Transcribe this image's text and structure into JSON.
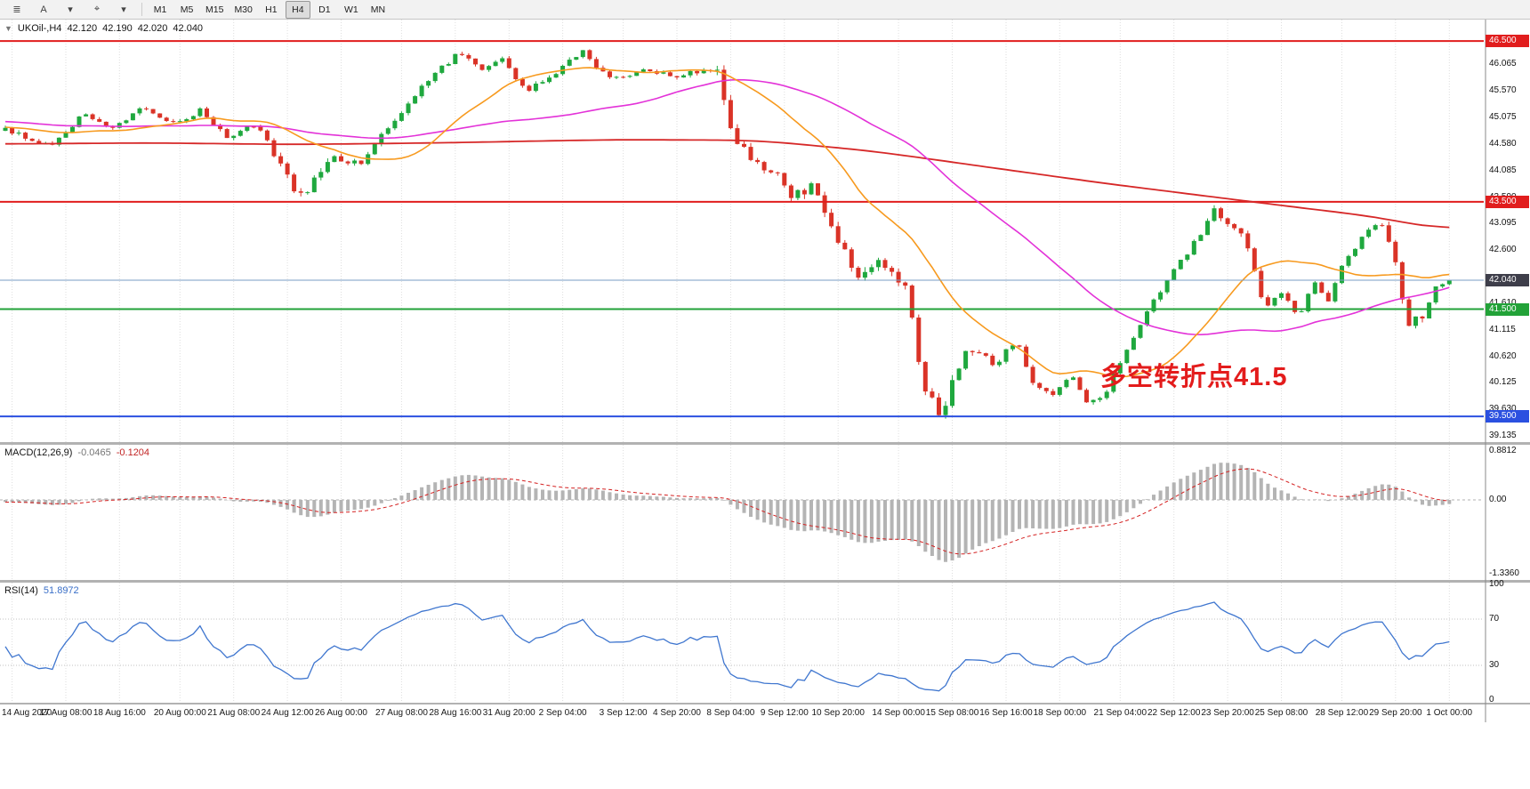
{
  "toolbar": {
    "tool_buttons": [
      {
        "name": "chart-list-icon",
        "glyph": "≣"
      },
      {
        "name": "font-tool-icon",
        "glyph": "A"
      },
      {
        "name": "font-dropdown-icon",
        "glyph": "▾"
      },
      {
        "name": "crosshair-tool-icon",
        "glyph": "⌖"
      },
      {
        "name": "crosshair-dropdown-icon",
        "glyph": "▾"
      }
    ],
    "timeframes": [
      "M1",
      "M5",
      "M15",
      "M30",
      "H1",
      "H4",
      "D1",
      "W1",
      "MN"
    ],
    "active_timeframe": "H4"
  },
  "chart": {
    "header": {
      "collapse_icon": "▼",
      "symbol_period": "UKOil-,H4",
      "open": "42.120",
      "high": "42.190",
      "low": "42.020",
      "close": "42.040"
    },
    "annotation": {
      "text": "多空转折点41.5",
      "color": "#e31c1c"
    }
  },
  "chart_data": {
    "type": "candlestick",
    "symbol": "UKOil-",
    "timeframe": "H4",
    "visible_bars": 216,
    "price_axis_range": {
      "max": 46.9,
      "min": 39.02
    },
    "price_ticks": [
      46.065,
      45.57,
      45.075,
      44.58,
      44.085,
      43.59,
      43.095,
      42.6,
      42.105,
      41.61,
      41.115,
      40.62,
      40.125,
      39.63,
      39.135
    ],
    "price_path_waypoints": [
      [
        0.0,
        44.85
      ],
      [
        0.03,
        44.55
      ],
      [
        0.055,
        45.15
      ],
      [
        0.075,
        44.85
      ],
      [
        0.095,
        45.3
      ],
      [
        0.115,
        44.95
      ],
      [
        0.135,
        45.2
      ],
      [
        0.155,
        44.7
      ],
      [
        0.175,
        44.95
      ],
      [
        0.195,
        43.95
      ],
      [
        0.206,
        43.55
      ],
      [
        0.225,
        44.35
      ],
      [
        0.245,
        44.2
      ],
      [
        0.27,
        45.05
      ],
      [
        0.295,
        45.85
      ],
      [
        0.315,
        46.3
      ],
      [
        0.33,
        45.95
      ],
      [
        0.345,
        46.15
      ],
      [
        0.36,
        45.55
      ],
      [
        0.38,
        45.9
      ],
      [
        0.4,
        46.3
      ],
      [
        0.42,
        45.75
      ],
      [
        0.445,
        46.0
      ],
      [
        0.465,
        45.8
      ],
      [
        0.485,
        46.0
      ],
      [
        0.493,
        45.9
      ],
      [
        0.505,
        44.7
      ],
      [
        0.518,
        44.3
      ],
      [
        0.532,
        44.05
      ],
      [
        0.545,
        43.55
      ],
      [
        0.56,
        43.85
      ],
      [
        0.575,
        42.9
      ],
      [
        0.59,
        42.15
      ],
      [
        0.605,
        42.4
      ],
      [
        0.625,
        41.85
      ],
      [
        0.634,
        40.15
      ],
      [
        0.648,
        39.55
      ],
      [
        0.66,
        40.45
      ],
      [
        0.672,
        40.85
      ],
      [
        0.685,
        40.45
      ],
      [
        0.7,
        40.95
      ],
      [
        0.712,
        40.1
      ],
      [
        0.725,
        39.85
      ],
      [
        0.738,
        40.25
      ],
      [
        0.75,
        39.7
      ],
      [
        0.762,
        39.95
      ],
      [
        0.775,
        40.7
      ],
      [
        0.79,
        41.4
      ],
      [
        0.805,
        42.05
      ],
      [
        0.82,
        42.6
      ],
      [
        0.838,
        43.35
      ],
      [
        0.85,
        43.05
      ],
      [
        0.86,
        42.7
      ],
      [
        0.872,
        41.45
      ],
      [
        0.884,
        41.85
      ],
      [
        0.895,
        41.35
      ],
      [
        0.906,
        42.0
      ],
      [
        0.916,
        41.6
      ],
      [
        0.927,
        42.4
      ],
      [
        0.94,
        42.85
      ],
      [
        0.952,
        43.1
      ],
      [
        0.962,
        42.6
      ],
      [
        0.97,
        41.2
      ],
      [
        0.982,
        41.35
      ],
      [
        0.991,
        41.9
      ],
      [
        1.0,
        42.04
      ]
    ],
    "moving_averages": {
      "fast_period": 21,
      "mid_period": 55,
      "slow_ma_waypoints": [
        [
          0.0,
          44.58
        ],
        [
          0.1,
          44.6
        ],
        [
          0.2,
          44.57
        ],
        [
          0.3,
          44.6
        ],
        [
          0.42,
          44.66
        ],
        [
          0.52,
          44.65
        ],
        [
          0.6,
          44.45
        ],
        [
          0.68,
          44.15
        ],
        [
          0.76,
          43.85
        ],
        [
          0.84,
          43.58
        ],
        [
          0.9,
          43.38
        ],
        [
          0.95,
          43.22
        ],
        [
          1.0,
          42.95
        ]
      ]
    },
    "horizontal_lines": [
      {
        "price": 46.5,
        "label": "46.500",
        "color": "#e11d1d",
        "width": 2
      },
      {
        "price": 43.5,
        "label": "43.500",
        "color": "#e11d1d",
        "width": 2
      },
      {
        "price": 41.5,
        "label": "41.500",
        "color": "#22a238",
        "width": 2
      },
      {
        "price": 39.5,
        "label": "39.500",
        "color": "#2b50e0",
        "width": 2
      }
    ],
    "current_price": {
      "value": 42.04,
      "label": "42.040",
      "line_color": "#7a9ec6",
      "badge_color": "#3e3e4a"
    },
    "colors": {
      "up": "#1fa83e",
      "down": "#da3327",
      "ma_fast": "#f79a1f",
      "ma_mid": "#e332d8",
      "ma_slow": "#d62828",
      "macd_hist": "#b4b4b4",
      "macd_signal": "#d42020",
      "rsi_line": "#3f76cf",
      "grid": "#dedede"
    },
    "macd": {
      "label": "MACD(12,26,9)",
      "value_main": "-0.0465",
      "value_signal": "-0.1204",
      "fast": 12,
      "slow": 26,
      "signal": 9,
      "range": {
        "max": 1.0,
        "min": -1.45
      },
      "axis_ticks": [
        {
          "label": "0.8812",
          "value": 0.8812
        },
        {
          "label": "0.00",
          "value": 0
        },
        {
          "label": "-1.3360",
          "value": -1.336
        }
      ]
    },
    "rsi": {
      "label": "RSI(14)",
      "value": "51.8972",
      "period": 14,
      "levels": [
        70,
        30
      ],
      "axis_ticks": [
        {
          "label": "100",
          "value": 100
        },
        {
          "label": "70",
          "value": 70
        },
        {
          "label": "30",
          "value": 30
        },
        {
          "label": "0",
          "value": 0
        }
      ]
    },
    "time_labels": [
      "14 Aug 2020",
      "17 Aug 08:00",
      "18 Aug 16:00",
      "20 Aug 00:00",
      "21 Aug 08:00",
      "24 Aug 12:00",
      "26 Aug 00:00",
      "27 Aug 08:00",
      "28 Aug 16:00",
      "31 Aug 20:00",
      "2 Sep 04:00",
      "3 Sep 12:00",
      "4 Sep 20:00",
      "8 Sep 04:00",
      "9 Sep 12:00",
      "10 Sep 20:00",
      "14 Sep 00:00",
      "15 Sep 08:00",
      "16 Sep 16:00",
      "18 Sep 00:00",
      "21 Sep 04:00",
      "22 Sep 12:00",
      "23 Sep 20:00",
      "25 Sep 08:00",
      "28 Sep 12:00",
      "29 Sep 20:00",
      "1 Oct 00:00"
    ]
  }
}
